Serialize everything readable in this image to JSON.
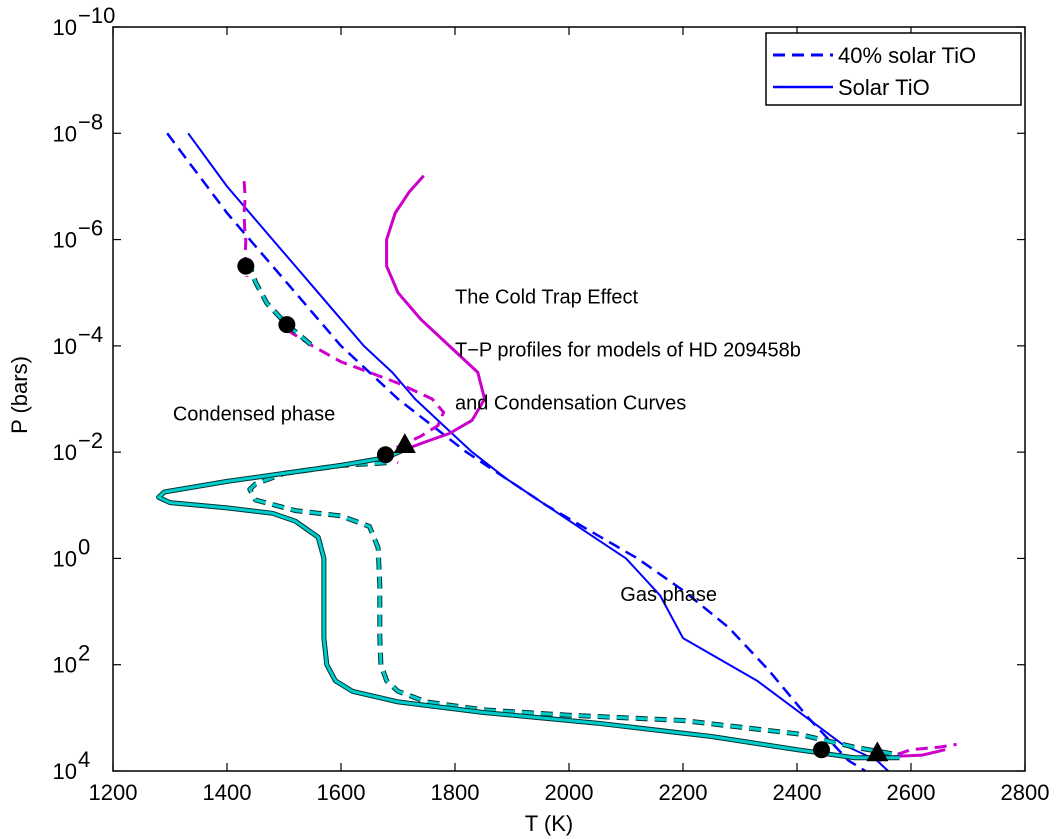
{
  "chart_data": {
    "type": "line",
    "xlabel": "T (K)",
    "ylabel": "P (bars)",
    "xlim": [
      1200,
      2800
    ],
    "ylim_log10": [
      -10,
      4
    ],
    "y_reversed": true,
    "y_scale": "log",
    "x_ticks": [
      1200,
      1400,
      1600,
      1800,
      2000,
      2200,
      2400,
      2600,
      2800
    ],
    "y_ticks": [
      {
        "base": "10",
        "exp": "−10",
        "log": -10
      },
      {
        "base": "10",
        "exp": "−8",
        "log": -8
      },
      {
        "base": "10",
        "exp": "−6",
        "log": -6
      },
      {
        "base": "10",
        "exp": "−4",
        "log": -4
      },
      {
        "base": "10",
        "exp": "−2",
        "log": -2
      },
      {
        "base": "10",
        "exp": "0",
        "log": 0
      },
      {
        "base": "10",
        "exp": "2",
        "log": 2
      },
      {
        "base": "10",
        "exp": "4",
        "log": 4
      }
    ],
    "legend": {
      "position": "top-right",
      "entries": [
        {
          "label": "40% solar TiO",
          "style": "dashed",
          "color": "#0000ff"
        },
        {
          "label": "Solar TiO",
          "style": "solid",
          "color": "#0000ff"
        }
      ]
    },
    "annotations": [
      {
        "text": "The Cold Trap Effect",
        "x": 1800,
        "logP": -4.8
      },
      {
        "text": "T−P profiles for models of HD 209458b",
        "x": 1800,
        "logP": -3.8
      },
      {
        "text": "and Condensation Curves",
        "x": 1800,
        "logP": -2.8
      },
      {
        "text": "Condensed phase",
        "x": 1305,
        "logP": -2.6
      },
      {
        "text": "Gas phase",
        "x": 2090,
        "logP": 0.8
      }
    ],
    "series": [
      {
        "style": "dashed",
        "color": "#0000ff",
        "width": 2.5,
        "points": [
          [
            1295,
            -8
          ],
          [
            1330,
            -7.5
          ],
          [
            1365,
            -7
          ],
          [
            1400,
            -6.5
          ],
          [
            1440,
            -6
          ],
          [
            1480,
            -5.5
          ],
          [
            1520,
            -5
          ],
          [
            1560,
            -4.5
          ],
          [
            1600,
            -4
          ],
          [
            1650,
            -3.5
          ],
          [
            1700,
            -3
          ],
          [
            1760,
            -2.5
          ],
          [
            1820,
            -2
          ],
          [
            1890,
            -1.5
          ],
          [
            1960,
            -1
          ],
          [
            2040,
            -0.5
          ],
          [
            2120,
            0
          ],
          [
            2200,
            0.6
          ],
          [
            2280,
            1.3
          ],
          [
            2350,
            2.1
          ],
          [
            2420,
            3.0
          ],
          [
            2490,
            3.8
          ],
          [
            2520,
            4.0
          ]
        ]
      },
      {
        "style": "solid",
        "color": "#0000ff",
        "width": 2,
        "points": [
          [
            1332,
            -8
          ],
          [
            1366,
            -7.5
          ],
          [
            1400,
            -7
          ],
          [
            1440,
            -6.5
          ],
          [
            1480,
            -6
          ],
          [
            1520,
            -5.5
          ],
          [
            1560,
            -5
          ],
          [
            1600,
            -4.5
          ],
          [
            1640,
            -4
          ],
          [
            1690,
            -3.5
          ],
          [
            1730,
            -3
          ],
          [
            1780,
            -2.5
          ],
          [
            1830,
            -2
          ],
          [
            1890,
            -1.5
          ],
          [
            1960,
            -1
          ],
          [
            2030,
            -0.5
          ],
          [
            2100,
            0
          ],
          [
            2160,
            0.7
          ],
          [
            2200,
            1.5
          ],
          [
            2330,
            2.3
          ],
          [
            2480,
            3.5
          ],
          [
            2540,
            3.8
          ],
          [
            2560,
            4.0
          ]
        ]
      },
      {
        "style": "dashed",
        "color": "#cc00cc",
        "width": 3,
        "points": [
          [
            1430,
            -7.1
          ],
          [
            1432,
            -6.8
          ],
          [
            1430,
            -6.5
          ],
          [
            1431,
            -6.2
          ],
          [
            1433,
            -6.0
          ],
          [
            1432,
            -5.7
          ],
          [
            1433,
            -5.5
          ],
          [
            1435,
            -5.3
          ]
        ]
      },
      {
        "style": "dashed",
        "color": "#cc00cc",
        "width": 3,
        "points": [
          [
            1505,
            -4.3
          ],
          [
            1550,
            -4.0
          ],
          [
            1600,
            -3.7
          ],
          [
            1650,
            -3.5
          ],
          [
            1700,
            -3.3
          ],
          [
            1760,
            -3.0
          ],
          [
            1780,
            -2.75
          ],
          [
            1770,
            -2.5
          ],
          [
            1740,
            -2.3
          ],
          [
            1700,
            -2.1
          ],
          [
            1680,
            -1.9
          ],
          [
            1700,
            -1.8
          ]
        ]
      },
      {
        "style": "solid",
        "color": "#cc00cc",
        "width": 3,
        "points": [
          [
            1745,
            -7.2
          ],
          [
            1720,
            -6.9
          ],
          [
            1695,
            -6.5
          ],
          [
            1680,
            -6.0
          ],
          [
            1680,
            -5.5
          ],
          [
            1700,
            -5.0
          ],
          [
            1740,
            -4.5
          ],
          [
            1790,
            -4.0
          ],
          [
            1840,
            -3.5
          ],
          [
            1852,
            -3.0
          ],
          [
            1830,
            -2.6
          ],
          [
            1790,
            -2.35
          ],
          [
            1750,
            -2.2
          ],
          [
            1712,
            -2.05
          ]
        ]
      },
      {
        "style": "dashed",
        "color": "#cc00cc",
        "width": 3,
        "points": [
          [
            2545,
            3.8
          ],
          [
            2600,
            3.6
          ],
          [
            2650,
            3.55
          ],
          [
            2680,
            3.5
          ]
        ]
      },
      {
        "style": "solid",
        "color": "#cc00cc",
        "width": 3,
        "points": [
          [
            2530,
            3.78
          ],
          [
            2580,
            3.72
          ],
          [
            2620,
            3.7
          ],
          [
            2660,
            3.6
          ]
        ]
      },
      {
        "style": "dashed",
        "color": "#00cccc",
        "width": 3,
        "double": true,
        "points": [
          [
            1437,
            -5.6
          ],
          [
            1450,
            -5.2
          ],
          [
            1470,
            -4.8
          ],
          [
            1505,
            -4.4
          ],
          [
            1550,
            -4.0
          ]
        ]
      },
      {
        "style": "dashed",
        "color": "#00cccc",
        "width": 3,
        "double": true,
        "points": [
          [
            1680,
            -1.8
          ],
          [
            1600,
            -1.75
          ],
          [
            1500,
            -1.6
          ],
          [
            1450,
            -1.4
          ],
          [
            1440,
            -1.3
          ],
          [
            1450,
            -1.1
          ],
          [
            1520,
            -0.9
          ],
          [
            1600,
            -0.8
          ],
          [
            1650,
            -0.6
          ],
          [
            1665,
            -0.2
          ],
          [
            1668,
            0.5
          ],
          [
            1668,
            1.0
          ],
          [
            1668,
            1.5
          ],
          [
            1670,
            2.0
          ],
          [
            1680,
            2.3
          ],
          [
            1700,
            2.5
          ],
          [
            1750,
            2.7
          ],
          [
            1850,
            2.85
          ],
          [
            2000,
            2.95
          ],
          [
            2200,
            3.05
          ],
          [
            2400,
            3.3
          ],
          [
            2500,
            3.55
          ],
          [
            2580,
            3.7
          ]
        ]
      },
      {
        "style": "solid",
        "color": "#00cccc",
        "width": 3,
        "double": true,
        "points": [
          [
            1712,
            -2.05
          ],
          [
            1680,
            -1.9
          ],
          [
            1600,
            -1.75
          ],
          [
            1500,
            -1.6
          ],
          [
            1400,
            -1.45
          ],
          [
            1290,
            -1.25
          ],
          [
            1280,
            -1.15
          ],
          [
            1300,
            -1.05
          ],
          [
            1400,
            -0.95
          ],
          [
            1480,
            -0.85
          ],
          [
            1520,
            -0.7
          ],
          [
            1560,
            -0.4
          ],
          [
            1570,
            0
          ],
          [
            1570,
            0.5
          ],
          [
            1570,
            1.0
          ],
          [
            1570,
            1.5
          ],
          [
            1575,
            2.0
          ],
          [
            1590,
            2.3
          ],
          [
            1620,
            2.5
          ],
          [
            1700,
            2.7
          ],
          [
            1850,
            2.9
          ],
          [
            2050,
            3.1
          ],
          [
            2250,
            3.35
          ],
          [
            2400,
            3.6
          ],
          [
            2500,
            3.75
          ],
          [
            2580,
            3.75
          ]
        ]
      }
    ],
    "markers": [
      {
        "shape": "circle",
        "x": 1433,
        "logP": -5.5
      },
      {
        "shape": "circle",
        "x": 1505,
        "logP": -4.4
      },
      {
        "shape": "circle",
        "x": 1678,
        "logP": -1.95
      },
      {
        "shape": "circle",
        "x": 2443,
        "logP": 3.6
      },
      {
        "shape": "triangle",
        "x": 1712,
        "logP": -2.15
      },
      {
        "shape": "triangle",
        "x": 2541,
        "logP": 3.65
      }
    ]
  }
}
